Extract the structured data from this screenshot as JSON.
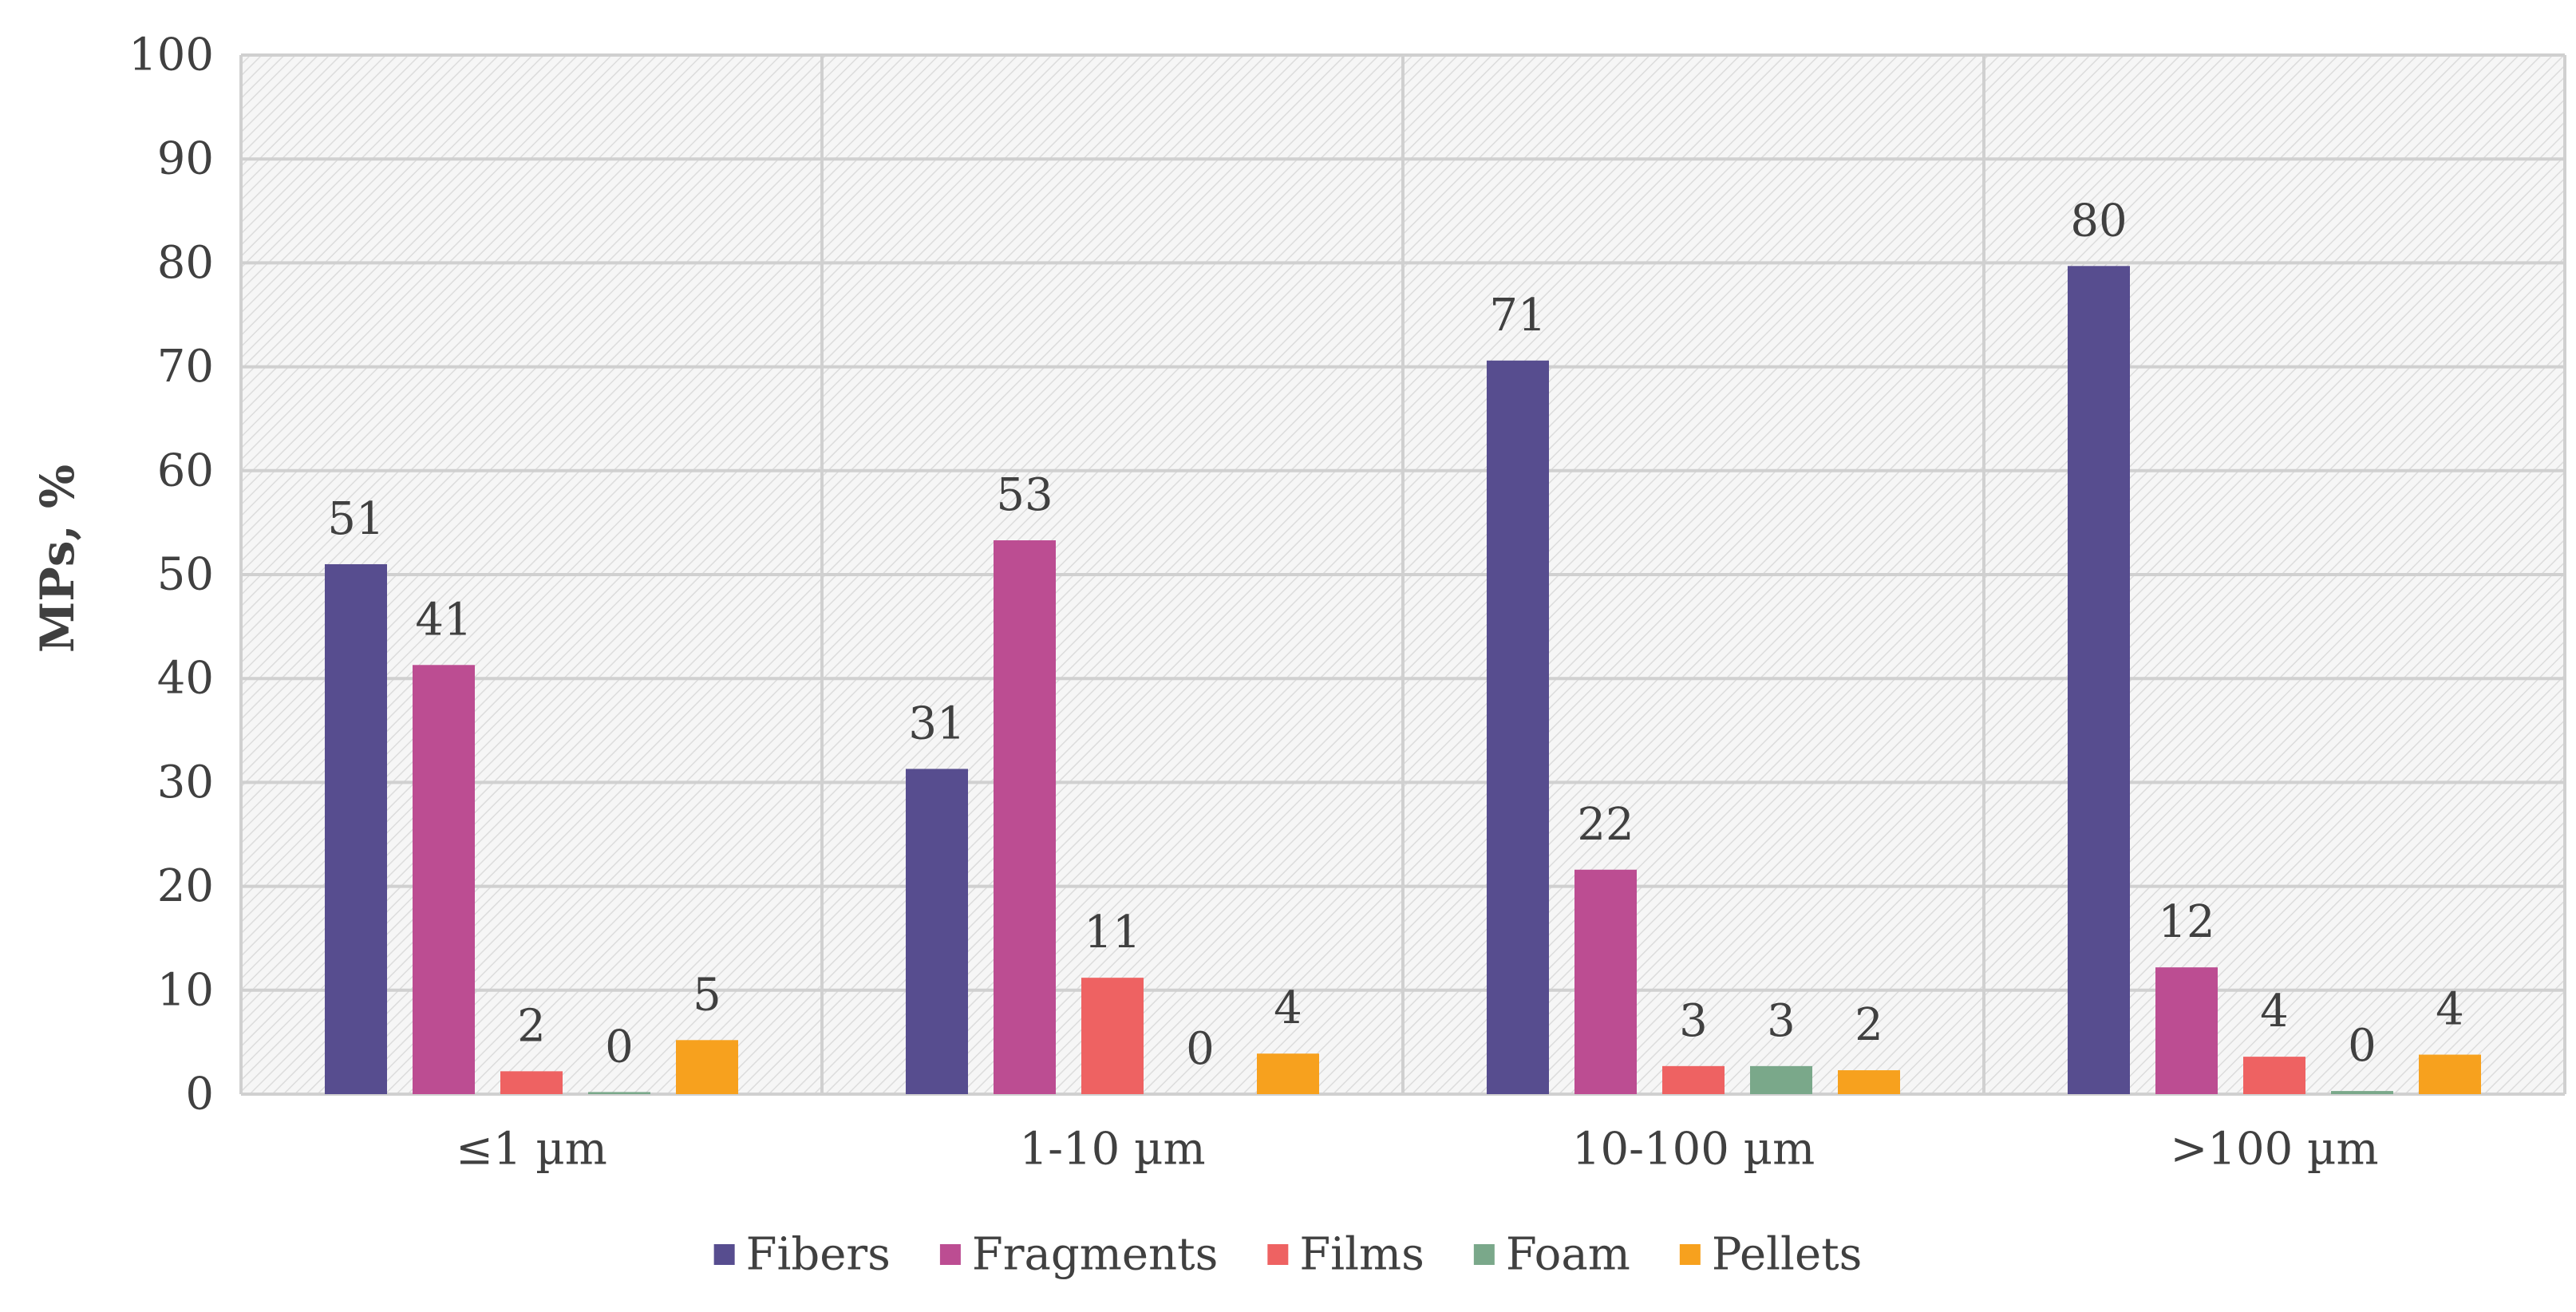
{
  "chart_data": {
    "type": "bar",
    "title": "",
    "xlabel": "",
    "ylabel": "MPs, %",
    "ylim": [
      0,
      100
    ],
    "yticks": [
      0,
      10,
      20,
      30,
      40,
      50,
      60,
      70,
      80,
      90,
      100
    ],
    "categories": [
      "≤1 µm",
      "1-10 µm",
      "10-100 µm",
      ">100 µm"
    ],
    "series": [
      {
        "name": "Fibers",
        "color": "#574d8f",
        "values": [
          51,
          31,
          71,
          80
        ],
        "labels": [
          "51",
          "31",
          "71",
          "80"
        ],
        "fill_values": [
          51,
          31.3,
          70.6,
          79.7
        ]
      },
      {
        "name": "Fragments",
        "color": "#bc4d92",
        "values": [
          41,
          53,
          22,
          12
        ],
        "labels": [
          "41",
          "53",
          "22",
          "12"
        ],
        "fill_values": [
          41.3,
          53.3,
          21.6,
          12.2
        ]
      },
      {
        "name": "Films",
        "color": "#ee6262",
        "values": [
          2,
          11,
          3,
          4
        ],
        "labels": [
          "2",
          "11",
          "3",
          "4"
        ],
        "fill_values": [
          2.2,
          11.2,
          2.7,
          3.6
        ]
      },
      {
        "name": "Foam",
        "color": "#7aa88a",
        "values": [
          0,
          0,
          3,
          0
        ],
        "labels": [
          "0",
          "0",
          "3",
          "0"
        ],
        "fill_values": [
          0.2,
          0,
          2.7,
          0.3
        ]
      },
      {
        "name": "Pellets",
        "color": "#f7a11e",
        "values": [
          5,
          4,
          2,
          4
        ],
        "labels": [
          "5",
          "4",
          "2",
          "4"
        ],
        "fill_values": [
          5.2,
          3.9,
          2.3,
          3.8
        ]
      }
    ],
    "grid": true,
    "legend_position": "bottom"
  }
}
